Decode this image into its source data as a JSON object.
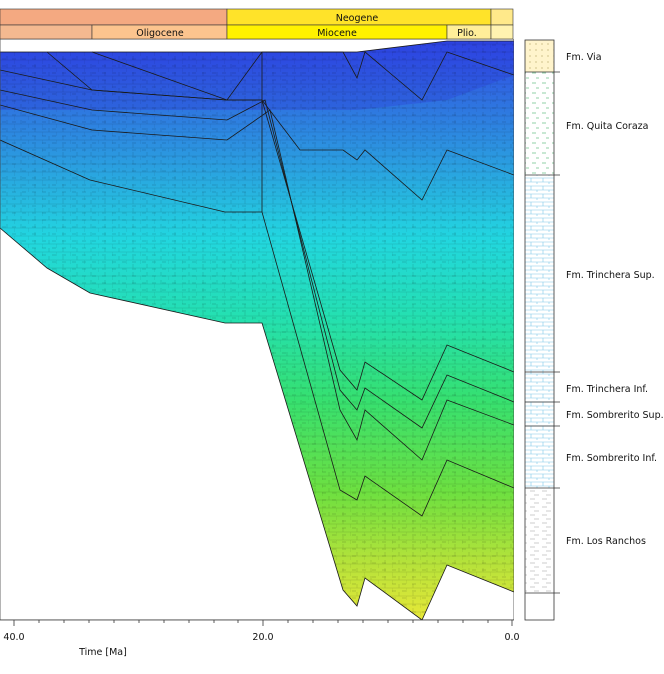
{
  "header": {
    "row1": [
      {
        "label": "",
        "color": "#f4a981"
      },
      {
        "label": "Neogene",
        "color": "#ffe329"
      },
      {
        "label": "",
        "color": "#ffe98a"
      }
    ],
    "row2": [
      {
        "label": "",
        "color": "#f4b990"
      },
      {
        "label": "Oligocene",
        "color": "#fcc48e"
      },
      {
        "label": "Miocene",
        "color": "#fff200"
      },
      {
        "label": "Plio.",
        "color": "#ffee99"
      },
      {
        "label": "",
        "color": "#fff3b0"
      }
    ]
  },
  "axis": {
    "ticks": [
      "40.0",
      "20.0",
      "0.0"
    ],
    "label": "Time [Ma]"
  },
  "formations": [
    {
      "name": "Fm. Via",
      "color": "#f3e4a0"
    },
    {
      "name": "Fm. Quita Coraza",
      "color": "#8fd6b0"
    },
    {
      "name": "Fm. Trinchera Sup.",
      "color": "#7fc8e8"
    },
    {
      "name": "Fm. Trinchera Inf.",
      "color": "#7fc8e8"
    },
    {
      "name": "Fm. Sombrerito Sup.",
      "color": "#7fc8e8"
    },
    {
      "name": "Fm. Sombrerito Inf.",
      "color": "#7fc8e8"
    },
    {
      "name": "Fm. Los Ranchos",
      "color": "#c8c8c8"
    }
  ]
}
